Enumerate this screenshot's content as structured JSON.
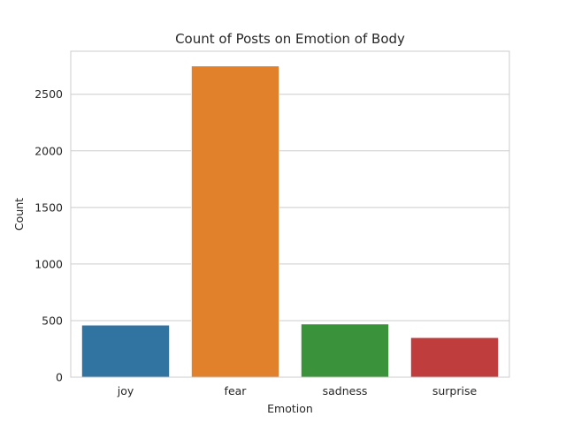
{
  "chart_data": {
    "type": "bar",
    "title": "Count of Posts on Emotion of Body",
    "xlabel": "Emotion",
    "ylabel": "Count",
    "categories": [
      "joy",
      "fear",
      "sadness",
      "surprise"
    ],
    "values": [
      460,
      2750,
      470,
      350
    ],
    "colors": [
      "#3274a1",
      "#e1812c",
      "#3a923a",
      "#c03d3e"
    ],
    "ylim": [
      0,
      2880
    ],
    "yticks": [
      0,
      500,
      1000,
      1500,
      2000,
      2500
    ],
    "grid": "y",
    "legend": "none"
  }
}
